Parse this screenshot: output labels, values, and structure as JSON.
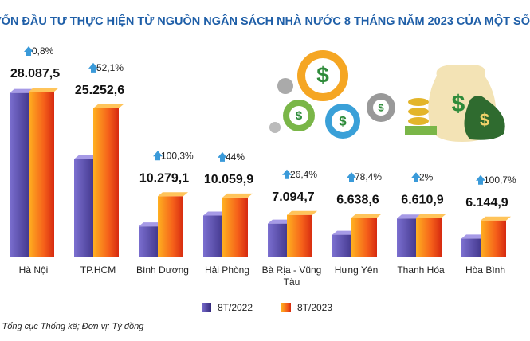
{
  "chart_data": {
    "type": "bar",
    "title": "VỐN ĐẦU TƯ THỰC HIỆN TỪ NGUỒN NGÂN SÁCH NHÀ NƯỚC 8 THÁNG NĂM 2023 CỦA MỘT SỐ ĐỊA P",
    "source": "Nguồn: Tổng cục Thống kê; Đơn vị: Tỷ đồng",
    "categories": [
      "Hà Nội",
      "TP.HCM",
      "Bình Dương",
      "Hải Phòng",
      "Bà Rịa - Vũng Tàu",
      "Hưng Yên",
      "Thanh Hóa",
      "Hòa Bình"
    ],
    "series": [
      {
        "name": "8T/2022",
        "color": "#4b3f9e",
        "values": [
          27865,
          16603,
          5132,
          6986,
          5613,
          3721,
          6481,
          3062
        ]
      },
      {
        "name": "8T/2023",
        "color": "#f25c1a",
        "values": [
          28087.5,
          25252.6,
          10279.1,
          10059.9,
          7094.7,
          6638.6,
          6610.9,
          6144.9
        ],
        "value_labels": [
          "28.087,5",
          "25.252,6",
          "10.279,1",
          "10.059,9",
          "7.094,7",
          "6.638,6",
          "6.610,9",
          "6.144,9"
        ]
      }
    ],
    "growth_labels": [
      "0,8%",
      "52,1%",
      "100,3%",
      "44%",
      "26,4%",
      "78,4%",
      "2%",
      "100,7%"
    ]
  }
}
